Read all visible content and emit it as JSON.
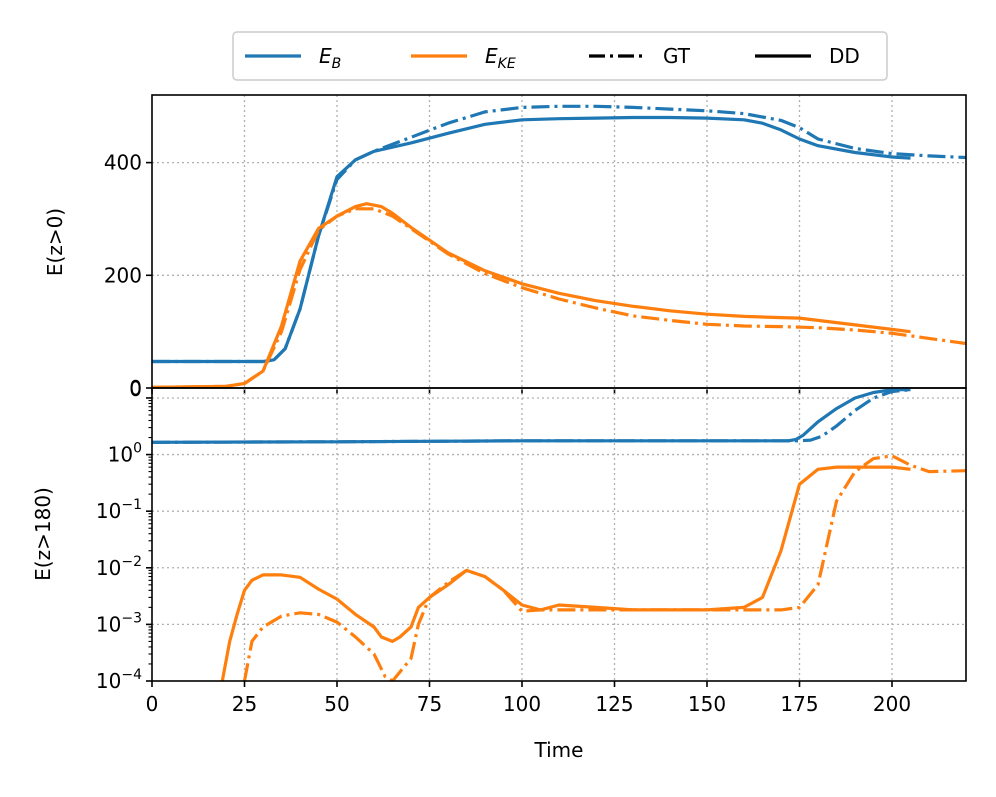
{
  "chart_data": [
    {
      "panel": "top",
      "type": "line",
      "title": "",
      "xlabel": "",
      "ylabel": "E(z>0)",
      "xlim": [
        0,
        220
      ],
      "ylim": [
        0,
        520
      ],
      "yscale": "linear",
      "grid": true,
      "xticks": [
        0,
        25,
        50,
        75,
        100,
        125,
        150,
        175,
        200
      ],
      "yticks": [
        0,
        200,
        400
      ],
      "series": [
        {
          "name": "E_B",
          "source": "GT",
          "color": "#1f77b4",
          "style": "dashdot",
          "x": [
            0,
            30,
            33,
            36,
            40,
            45,
            50,
            55,
            60,
            70,
            80,
            90,
            100,
            110,
            120,
            130,
            140,
            150,
            160,
            170,
            175,
            180,
            190,
            200,
            210,
            220
          ],
          "y": [
            47,
            47,
            50,
            70,
            140,
            270,
            370,
            405,
            420,
            445,
            470,
            490,
            498,
            500,
            500,
            498,
            495,
            492,
            487,
            475,
            462,
            442,
            425,
            416,
            412,
            409
          ]
        },
        {
          "name": "E_B",
          "source": "DD",
          "color": "#1f77b4",
          "style": "solid",
          "x": [
            0,
            30,
            33,
            36,
            40,
            45,
            50,
            55,
            60,
            70,
            80,
            90,
            100,
            110,
            120,
            130,
            140,
            150,
            160,
            165,
            170,
            175,
            180,
            190,
            200,
            205
          ],
          "y": [
            47,
            47,
            50,
            70,
            140,
            270,
            375,
            405,
            420,
            435,
            452,
            468,
            476,
            478,
            479,
            480,
            480,
            479,
            476,
            470,
            458,
            442,
            430,
            418,
            410,
            408
          ]
        },
        {
          "name": "E_KE",
          "source": "GT",
          "color": "#ff7f0e",
          "style": "dashdot",
          "x": [
            0,
            20,
            25,
            30,
            35,
            40,
            45,
            50,
            55,
            60,
            65,
            70,
            80,
            90,
            100,
            110,
            120,
            130,
            140,
            150,
            160,
            170,
            180,
            190,
            200,
            210,
            220
          ],
          "y": [
            1,
            3,
            8,
            30,
            100,
            210,
            280,
            305,
            318,
            318,
            305,
            283,
            238,
            203,
            178,
            158,
            142,
            128,
            120,
            113,
            110,
            109,
            107,
            103,
            97,
            88,
            79
          ]
        },
        {
          "name": "E_KE",
          "source": "DD",
          "color": "#ff7f0e",
          "style": "solid",
          "x": [
            0,
            20,
            25,
            30,
            35,
            40,
            45,
            50,
            55,
            58,
            62,
            65,
            70,
            80,
            90,
            100,
            110,
            120,
            130,
            140,
            150,
            160,
            170,
            175,
            180,
            190,
            200,
            205
          ],
          "y": [
            1,
            3,
            8,
            30,
            110,
            225,
            283,
            305,
            322,
            327,
            322,
            310,
            285,
            240,
            208,
            185,
            168,
            155,
            145,
            137,
            131,
            127,
            125,
            124,
            120,
            112,
            104,
            100
          ]
        }
      ]
    },
    {
      "panel": "bottom",
      "type": "line",
      "title": "",
      "xlabel": "Time",
      "ylabel": "E(z>180)",
      "xlim": [
        0,
        220
      ],
      "ylim": [
        0.0001,
        15
      ],
      "yscale": "log",
      "grid": true,
      "xticks": [
        0,
        25,
        50,
        75,
        100,
        125,
        150,
        175,
        200
      ],
      "yticks": [
        0.0001,
        0.001,
        0.01,
        0.1,
        1,
        10
      ],
      "ytick_labels": {
        "base": "10",
        "exponents": [
          "−4",
          "−3",
          "−2",
          "−1",
          "0",
          ""
        ],
        "top_label": "0"
      },
      "series": [
        {
          "name": "E_B",
          "source": "GT",
          "color": "#1f77b4",
          "style": "dashdot",
          "x": [
            0,
            50,
            100,
            150,
            175,
            178,
            181,
            185,
            190,
            195,
            200,
            205
          ],
          "y": [
            1.65,
            1.68,
            1.75,
            1.75,
            1.75,
            1.8,
            2.1,
            3.2,
            6.0,
            10.0,
            13.0,
            14.0
          ]
        },
        {
          "name": "E_B",
          "source": "DD",
          "color": "#1f77b4",
          "style": "solid",
          "x": [
            0,
            50,
            100,
            150,
            172,
            174,
            176,
            180,
            185,
            190,
            195,
            200,
            205
          ],
          "y": [
            1.65,
            1.68,
            1.75,
            1.75,
            1.75,
            1.85,
            2.2,
            3.8,
            6.5,
            10.0,
            12.5,
            14.0,
            14.0
          ]
        },
        {
          "name": "E_KE",
          "source": "GT",
          "color": "#ff7f0e",
          "style": "dashdot",
          "x": [
            25,
            27,
            30,
            35,
            40,
            45,
            50,
            55,
            60,
            63,
            65,
            70,
            72,
            75,
            80,
            85,
            90,
            95,
            100,
            105,
            110,
            120,
            130,
            140,
            150,
            160,
            170,
            175,
            180,
            185,
            190,
            195,
            200,
            205,
            210,
            220
          ],
          "y": [
            0.0001,
            0.0005,
            0.0009,
            0.0014,
            0.0016,
            0.0015,
            0.0011,
            0.0006,
            0.0003,
            0.00012,
            0.0001,
            0.00025,
            0.001,
            0.003,
            0.0055,
            0.009,
            0.007,
            0.004,
            0.0017,
            0.0018,
            0.0018,
            0.0018,
            0.0018,
            0.0018,
            0.0018,
            0.0018,
            0.0018,
            0.002,
            0.005,
            0.15,
            0.5,
            0.85,
            0.95,
            0.65,
            0.5,
            0.52
          ]
        },
        {
          "name": "E_KE",
          "source": "DD",
          "color": "#ff7f0e",
          "style": "solid",
          "x": [
            19,
            21,
            23,
            25,
            27,
            30,
            35,
            40,
            45,
            50,
            55,
            60,
            62,
            65,
            67,
            70,
            72,
            75,
            80,
            85,
            90,
            95,
            100,
            105,
            110,
            120,
            130,
            140,
            150,
            160,
            165,
            170,
            175,
            180,
            185,
            190,
            195,
            200,
            205
          ],
          "y": [
            0.0001,
            0.0005,
            0.0015,
            0.004,
            0.006,
            0.0075,
            0.0075,
            0.0068,
            0.0042,
            0.0028,
            0.0015,
            0.0009,
            0.0006,
            0.0005,
            0.0006,
            0.0009,
            0.002,
            0.003,
            0.005,
            0.009,
            0.007,
            0.004,
            0.0022,
            0.0018,
            0.0022,
            0.002,
            0.0018,
            0.0018,
            0.0018,
            0.002,
            0.003,
            0.02,
            0.3,
            0.55,
            0.6,
            0.6,
            0.6,
            0.6,
            0.55
          ]
        }
      ]
    }
  ],
  "legend": {
    "placement": "top-center",
    "entries": [
      {
        "label": "E",
        "sub": "B",
        "color": "#1f77b4",
        "style": "solid"
      },
      {
        "label": "E",
        "sub": "KE",
        "color": "#ff7f0e",
        "style": "solid"
      },
      {
        "label": "GT",
        "color": "#000000",
        "style": "dashdot"
      },
      {
        "label": "DD",
        "color": "#000000",
        "style": "solid"
      }
    ]
  }
}
